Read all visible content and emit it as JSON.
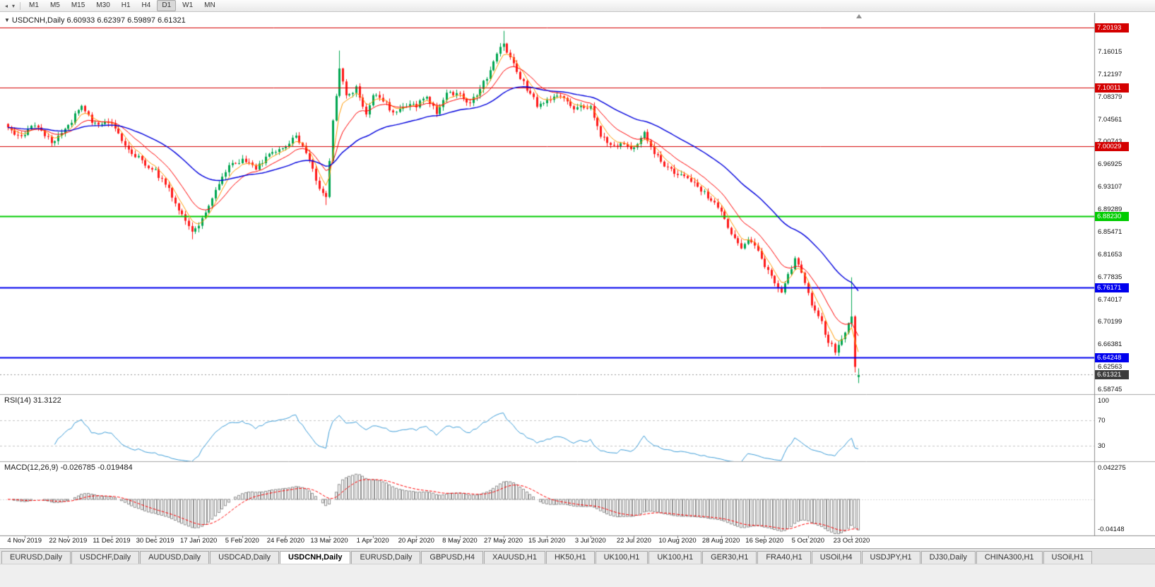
{
  "toolbar": {
    "timeframes": [
      "M1",
      "M5",
      "M15",
      "M30",
      "H1",
      "H4",
      "D1",
      "W1",
      "MN"
    ],
    "active_timeframe": "D1",
    "icons": [
      {
        "name": "chart-scroll-icon",
        "glyph": "◂"
      },
      {
        "name": "toolbar-dropdown-icon",
        "glyph": "▾"
      }
    ]
  },
  "chart_data": {
    "type": "candlestick",
    "symbol": "USDCNH",
    "period": "Daily",
    "title": "USDCNH,Daily 6.60933 6.62397 6.59897 6.61321",
    "collapse_glyph": "▼",
    "current_ohlc": {
      "open": 6.60933,
      "high": 6.62397,
      "low": 6.59897,
      "close": 6.61321
    },
    "y_axis_labels": [
      "7.16015",
      "7.12197",
      "7.08379",
      "7.04561",
      "7.00743",
      "6.96925",
      "6.93107",
      "6.89289",
      "6.85471",
      "6.81653",
      "6.77835",
      "6.74017",
      "6.70199",
      "6.66381",
      "6.62563",
      "6.58745"
    ],
    "x_axis_labels": [
      "4 Nov 2019",
      "22 Nov 2019",
      "11 Dec 2019",
      "30 Dec 2019",
      "17 Jan 2020",
      "5 Feb 2020",
      "24 Feb 2020",
      "13 Mar 2020",
      "1 Apr 2020",
      "20 Apr 2020",
      "8 May 2020",
      "27 May 2020",
      "15 Jun 2020",
      "3 Jul 2020",
      "22 Jul 2020",
      "10 Aug 2020",
      "28 Aug 2020",
      "16 Sep 2020",
      "5 Oct 2020",
      "23 Oct 2020"
    ],
    "x_label_first_index": 5,
    "x_label_step": 13,
    "num_candles": 255,
    "close_anchors": [
      [
        0,
        7.03
      ],
      [
        4,
        7.018
      ],
      [
        8,
        7.036
      ],
      [
        13,
        7.008
      ],
      [
        18,
        7.036
      ],
      [
        22,
        7.072
      ],
      [
        25,
        7.042
      ],
      [
        31,
        7.036
      ],
      [
        35,
        7.002
      ],
      [
        40,
        6.976
      ],
      [
        44,
        6.958
      ],
      [
        48,
        6.928
      ],
      [
        52,
        6.882
      ],
      [
        55,
        6.856
      ],
      [
        57,
        6.868
      ],
      [
        60,
        6.902
      ],
      [
        63,
        6.936
      ],
      [
        66,
        6.968
      ],
      [
        70,
        6.976
      ],
      [
        74,
        6.964
      ],
      [
        78,
        6.986
      ],
      [
        83,
        7.004
      ],
      [
        86,
        7.02
      ],
      [
        89,
        6.988
      ],
      [
        93,
        6.93
      ],
      [
        95,
        6.912
      ],
      [
        97,
        7.045
      ],
      [
        99,
        7.135
      ],
      [
        101,
        7.085
      ],
      [
        104,
        7.1
      ],
      [
        107,
        7.052
      ],
      [
        109,
        7.088
      ],
      [
        112,
        7.078
      ],
      [
        115,
        7.058
      ],
      [
        118,
        7.072
      ],
      [
        122,
        7.07
      ],
      [
        125,
        7.082
      ],
      [
        128,
        7.06
      ],
      [
        131,
        7.088
      ],
      [
        135,
        7.09
      ],
      [
        138,
        7.072
      ],
      [
        141,
        7.1
      ],
      [
        144,
        7.128
      ],
      [
        147,
        7.168
      ],
      [
        148,
        7.172
      ],
      [
        150,
        7.148
      ],
      [
        153,
        7.118
      ],
      [
        156,
        7.09
      ],
      [
        158,
        7.07
      ],
      [
        161,
        7.076
      ],
      [
        164,
        7.09
      ],
      [
        167,
        7.074
      ],
      [
        170,
        7.064
      ],
      [
        174,
        7.07
      ],
      [
        177,
        7.02
      ],
      [
        180,
        7.0
      ],
      [
        183,
        7.006
      ],
      [
        187,
        6.996
      ],
      [
        190,
        7.024
      ],
      [
        193,
        6.99
      ],
      [
        196,
        6.968
      ],
      [
        200,
        6.954
      ],
      [
        204,
        6.944
      ],
      [
        208,
        6.92
      ],
      [
        211,
        6.908
      ],
      [
        213,
        6.888
      ],
      [
        216,
        6.85
      ],
      [
        219,
        6.83
      ],
      [
        222,
        6.842
      ],
      [
        225,
        6.814
      ],
      [
        226,
        6.8
      ],
      [
        229,
        6.768
      ],
      [
        231,
        6.754
      ],
      [
        233,
        6.78
      ],
      [
        235,
        6.81
      ],
      [
        237,
        6.788
      ],
      [
        239,
        6.75
      ],
      [
        241,
        6.72
      ],
      [
        243,
        6.7
      ],
      [
        245,
        6.67
      ],
      [
        247,
        6.654
      ],
      [
        249,
        6.676
      ],
      [
        251,
        6.7
      ],
      [
        252,
        6.712
      ],
      [
        253,
        6.627
      ],
      [
        254,
        6.613
      ]
    ],
    "candle_overrides": {
      "55": {
        "low": 6.843
      },
      "95": {
        "low": 6.901
      },
      "99": {
        "high": 7.163
      },
      "148": {
        "high": 7.1965
      },
      "252": {
        "open": 6.7,
        "close": 6.712,
        "high": 6.7784,
        "low": 6.694
      },
      "253": {
        "open": 6.712,
        "close": 6.6265,
        "low": 6.617
      },
      "254": {
        "open": 6.60933,
        "high": 6.62397,
        "low": 6.59897,
        "close": 6.61321
      }
    },
    "hlines": [
      {
        "price": 7.20193,
        "label": "7.20193",
        "color": "#d40000",
        "width": 1
      },
      {
        "price": 7.10011,
        "label": "7.10011",
        "color": "#d40000",
        "width": 1
      },
      {
        "price": 7.00029,
        "label": "7.00029",
        "color": "#d40000",
        "width": 1
      },
      {
        "price": 6.8823,
        "label": "6.88230",
        "color": "#00cc00",
        "width": 2
      },
      {
        "price": 6.76171,
        "label": "6.76171",
        "color": "#0000ee",
        "width": 2
      },
      {
        "price": 6.64248,
        "label": "6.64248",
        "color": "#0000ee",
        "width": 2
      }
    ],
    "current_price_line": {
      "price": 6.61321,
      "label": "6.61321",
      "badge_color": "#3c3c3c",
      "line_color": "#9a9a9a"
    },
    "colors": {
      "up": "#00a650",
      "down": "#ff1a1a",
      "ma_fast": "#ff9900",
      "ma_mid": "#ff0000",
      "ma_slow": "#0000dd"
    },
    "ma_periods": {
      "fast": 5,
      "mid": 13,
      "slow": 40
    },
    "indicators": {
      "rsi": {
        "label": "RSI(14) 31.3122",
        "period": 14,
        "current": 31.3122,
        "levels": [
          70,
          30
        ],
        "axis_labels": [
          "100",
          "70",
          "30"
        ],
        "color": "#3c9cd7"
      },
      "macd": {
        "label": "MACD(12,26,9) -0.026785 -0.019484",
        "fast": 12,
        "slow": 26,
        "signal": 9,
        "macd_value": -0.026785,
        "signal_value": -0.019484,
        "axis_labels": [
          "0.042275",
          "-0.04148"
        ],
        "hist_color": "#8f8f8f",
        "signal_color": "#ff0000"
      }
    }
  },
  "tabbar": {
    "active_index": 4,
    "tabs": [
      "EURUSD,Daily",
      "USDCHF,Daily",
      "AUDUSD,Daily",
      "USDCAD,Daily",
      "USDCNH,Daily",
      "EURUSD,Daily",
      "GBPUSD,H4",
      "XAUUSD,H1",
      "HK50,H1",
      "UK100,H1",
      "UK100,H1",
      "GER30,H1",
      "FRA40,H1",
      "USOil,H4",
      "USDJPY,H1",
      "DJ30,Daily",
      "CHINA300,H1",
      "USOil,H1"
    ]
  }
}
